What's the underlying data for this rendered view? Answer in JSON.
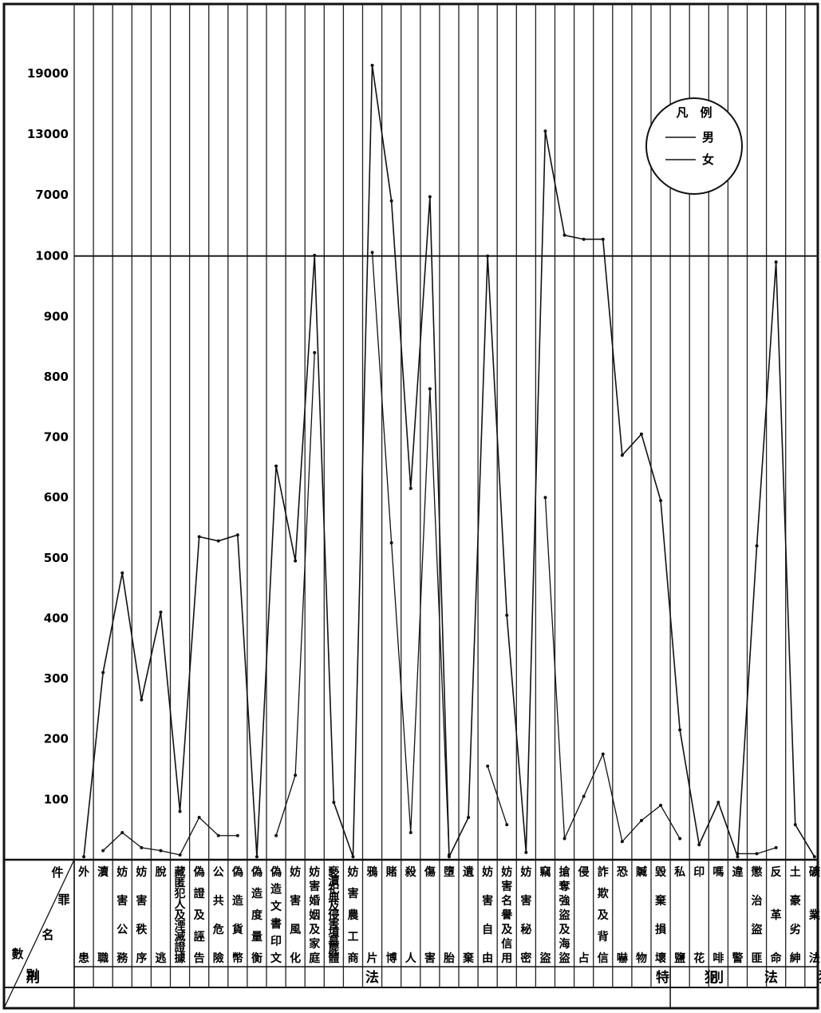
{
  "chart_data": {
    "type": "line",
    "title": "",
    "xlabel": "",
    "ylabel": "",
    "y_ticks": [
      100,
      200,
      300,
      400,
      500,
      600,
      700,
      800,
      900,
      1000,
      7000,
      13000,
      19000
    ],
    "grid": true,
    "legend_position": "top-right",
    "legend_title": "凡　例",
    "categories": [
      [
        "外",
        "患"
      ],
      [
        "瀆",
        "職"
      ],
      [
        "妨",
        "害",
        "公",
        "務"
      ],
      [
        "妨",
        "害",
        "秩",
        "序"
      ],
      [
        "脫",
        "逃"
      ],
      [
        "藏",
        "匿",
        "犯",
        "人",
        "及",
        "湮",
        "滅",
        "證",
        "據"
      ],
      [
        "偽",
        "證",
        "及",
        "誣",
        "告"
      ],
      [
        "公",
        "共",
        "危",
        "險"
      ],
      [
        "偽",
        "造",
        "貨",
        "幣"
      ],
      [
        "偽",
        "造",
        "度",
        "量",
        "衡"
      ],
      [
        "偽",
        "造",
        "文",
        "書",
        "印",
        "文"
      ],
      [
        "妨",
        "害",
        "風",
        "化"
      ],
      [
        "妨",
        "害",
        "婚",
        "姻",
        "及",
        "家",
        "庭"
      ],
      [
        "褻",
        "瀆",
        "祀",
        "典",
        "及",
        "侵",
        "害",
        "墳",
        "墓",
        "屍",
        "體"
      ],
      [
        "妨",
        "害",
        "農",
        "工",
        "商"
      ],
      [
        "鴉",
        "片"
      ],
      [
        "賭",
        "博"
      ],
      [
        "殺",
        "人"
      ],
      [
        "傷",
        "害"
      ],
      [
        "墮",
        "胎"
      ],
      [
        "遺",
        "棄"
      ],
      [
        "妨",
        "害",
        "自",
        "由"
      ],
      [
        "妨",
        "害",
        "名",
        "譽",
        "及",
        "信",
        "用"
      ],
      [
        "妨",
        "害",
        "秘",
        "密"
      ],
      [
        "竊",
        "盜"
      ],
      [
        "搶",
        "奪",
        "強",
        "盜",
        "及",
        "海",
        "盜"
      ],
      [
        "侵",
        "占"
      ],
      [
        "詐",
        "欺",
        "及",
        "背",
        "信"
      ],
      [
        "恐",
        "嚇"
      ],
      [
        "贓",
        "物"
      ],
      [
        "毀",
        "棄",
        "損",
        "壞"
      ],
      [
        "私",
        "鹽"
      ],
      [
        "印",
        "花"
      ],
      [
        "嗎",
        "啡"
      ],
      [
        "違",
        "警"
      ],
      [
        "懲",
        "治",
        "盜",
        "匪"
      ],
      [
        "反",
        "革",
        "命"
      ],
      [
        "土",
        "豪",
        "劣",
        "紳"
      ],
      [
        "礦",
        "業",
        "法"
      ]
    ],
    "row_header": {
      "top": "件",
      "mid1": "罪",
      "mid2": "名",
      "left": "數",
      "bottom": "別"
    },
    "groups": [
      {
        "label": "刑　　　　　　　　　　　　　　　　　　　　　　　　法　　　　　　　　　　　　　　　　　　　　　　　　犯",
        "span": [
          0,
          30
        ]
      },
      {
        "label": "特　　　別　　　法　　　犯",
        "span": [
          31,
          38
        ]
      }
    ],
    "series": [
      {
        "name": "男",
        "values": [
          5,
          310,
          475,
          265,
          410,
          80,
          535,
          528,
          538,
          5,
          652,
          495,
          1010,
          95,
          5,
          19800,
          6400,
          615,
          6800,
          5,
          70,
          1000,
          405,
          12,
          13300,
          3000,
          2600,
          2600,
          670,
          705,
          595,
          215,
          25,
          95,
          5,
          520,
          990,
          58,
          5
        ]
      },
      {
        "name": "女",
        "values": [
          null,
          15,
          45,
          20,
          15,
          8,
          70,
          40,
          40,
          null,
          40,
          140,
          840,
          null,
          null,
          1300,
          525,
          45,
          780,
          8,
          null,
          155,
          58,
          null,
          600,
          35,
          105,
          175,
          30,
          65,
          90,
          35,
          null,
          null,
          10,
          10,
          20,
          null,
          null
        ]
      }
    ]
  }
}
